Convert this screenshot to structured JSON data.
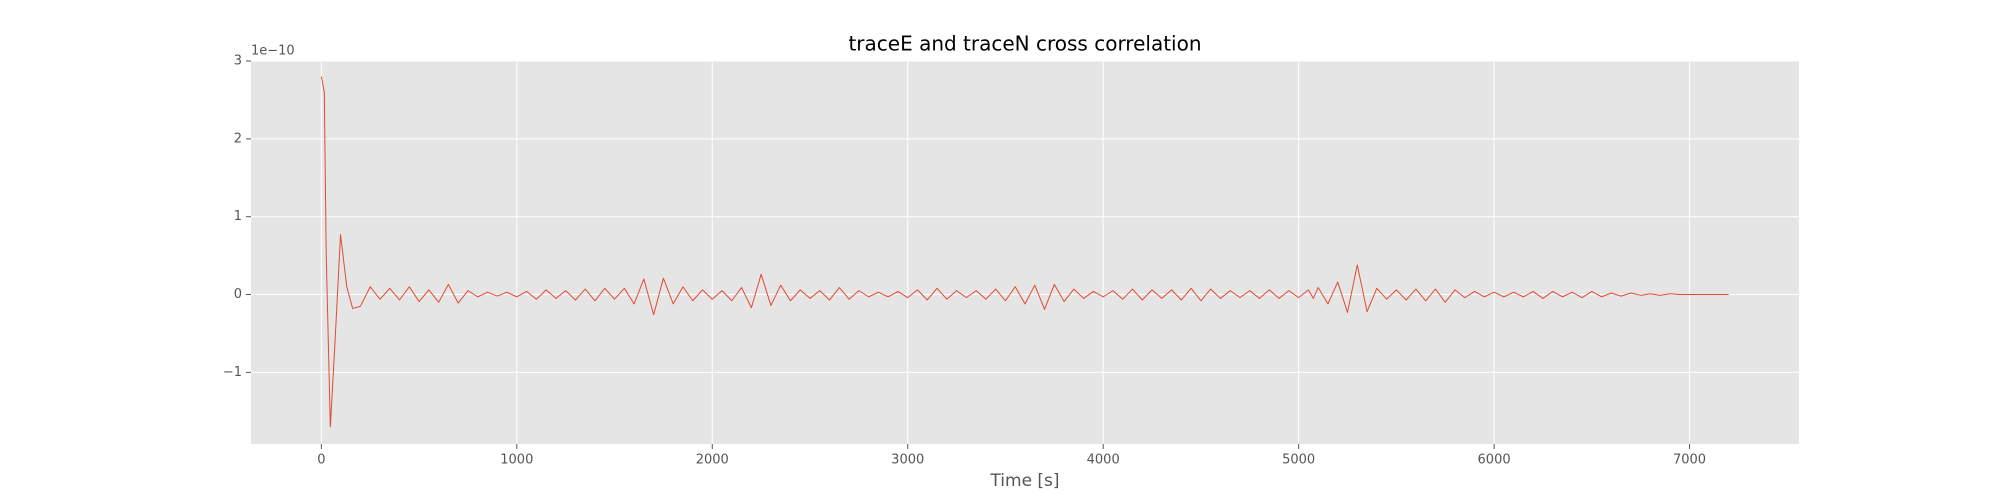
{
  "chart_data": {
    "type": "line",
    "title": "traceE and traceN cross correlation",
    "xlabel": "Time [s]",
    "y_offset_label": "1e−10",
    "x": [
      0,
      15,
      25,
      46,
      70,
      98,
      130,
      160,
      200,
      250,
      300,
      350,
      400,
      450,
      500,
      550,
      600,
      650,
      700,
      750,
      800,
      850,
      900,
      950,
      1000,
      1050,
      1100,
      1150,
      1200,
      1250,
      1300,
      1350,
      1400,
      1450,
      1500,
      1550,
      1600,
      1650,
      1700,
      1750,
      1800,
      1850,
      1900,
      1950,
      2000,
      2050,
      2100,
      2150,
      2200,
      2250,
      2300,
      2350,
      2400,
      2450,
      2500,
      2550,
      2600,
      2650,
      2700,
      2750,
      2800,
      2850,
      2900,
      2950,
      3000,
      3050,
      3100,
      3150,
      3200,
      3250,
      3300,
      3350,
      3400,
      3450,
      3500,
      3550,
      3600,
      3650,
      3700,
      3750,
      3800,
      3850,
      3900,
      3950,
      4000,
      4050,
      4100,
      4150,
      4200,
      4250,
      4300,
      4350,
      4400,
      4450,
      4500,
      4550,
      4600,
      4650,
      4700,
      4750,
      4800,
      4850,
      4900,
      4950,
      5000,
      5050,
      5075,
      5100,
      5150,
      5200,
      5250,
      5300,
      5350,
      5400,
      5450,
      5500,
      5550,
      5600,
      5650,
      5700,
      5750,
      5800,
      5850,
      5900,
      5950,
      6000,
      6050,
      6100,
      6150,
      6200,
      6250,
      6300,
      6350,
      6400,
      6450,
      6500,
      6550,
      6600,
      6650,
      6700,
      6750,
      6800,
      6850,
      6900,
      6950,
      7000,
      7100,
      7200
    ],
    "series": [
      {
        "name": "cross correlation",
        "color": "#E24A33",
        "values": [
          2.8,
          2.6,
          0.5,
          -1.7,
          -0.6,
          0.77,
          0.1,
          -0.18,
          -0.15,
          0.1,
          -0.06,
          0.08,
          -0.07,
          0.1,
          -0.09,
          0.06,
          -0.1,
          0.13,
          -0.11,
          0.05,
          -0.03,
          0.03,
          -0.02,
          0.03,
          -0.03,
          0.04,
          -0.06,
          0.06,
          -0.05,
          0.05,
          -0.07,
          0.07,
          -0.08,
          0.08,
          -0.06,
          0.08,
          -0.12,
          0.2,
          -0.26,
          0.21,
          -0.12,
          0.1,
          -0.08,
          0.06,
          -0.06,
          0.05,
          -0.08,
          0.09,
          -0.17,
          0.26,
          -0.14,
          0.12,
          -0.08,
          0.06,
          -0.05,
          0.05,
          -0.07,
          0.09,
          -0.06,
          0.05,
          -0.03,
          0.03,
          -0.03,
          0.04,
          -0.04,
          0.06,
          -0.07,
          0.08,
          -0.06,
          0.05,
          -0.04,
          0.05,
          -0.06,
          0.07,
          -0.08,
          0.1,
          -0.12,
          0.12,
          -0.19,
          0.13,
          -0.09,
          0.07,
          -0.05,
          0.04,
          -0.03,
          0.05,
          -0.06,
          0.07,
          -0.07,
          0.06,
          -0.05,
          0.06,
          -0.07,
          0.08,
          -0.08,
          0.07,
          -0.05,
          0.05,
          -0.04,
          0.05,
          -0.05,
          0.06,
          -0.05,
          0.05,
          -0.04,
          0.06,
          -0.05,
          0.09,
          -0.12,
          0.16,
          -0.23,
          0.38,
          -0.22,
          0.08,
          -0.06,
          0.06,
          -0.07,
          0.07,
          -0.08,
          0.07,
          -0.1,
          0.06,
          -0.04,
          0.04,
          -0.03,
          0.03,
          -0.03,
          0.03,
          -0.03,
          0.04,
          -0.05,
          0.04,
          -0.03,
          0.03,
          -0.04,
          0.04,
          -0.03,
          0.02,
          -0.02,
          0.02,
          -0.01,
          0.01,
          -0.01,
          0.01,
          0,
          0,
          0,
          0
        ]
      }
    ],
    "xlim": [
      -360,
      7560
    ],
    "ylim": [
      -1.92,
      3.0
    ],
    "xticks": [
      0,
      1000,
      2000,
      3000,
      4000,
      5000,
      6000,
      7000
    ],
    "yticks": [
      {
        "value": -1,
        "label": "−1"
      },
      0,
      1,
      2,
      3
    ],
    "grid": true
  }
}
